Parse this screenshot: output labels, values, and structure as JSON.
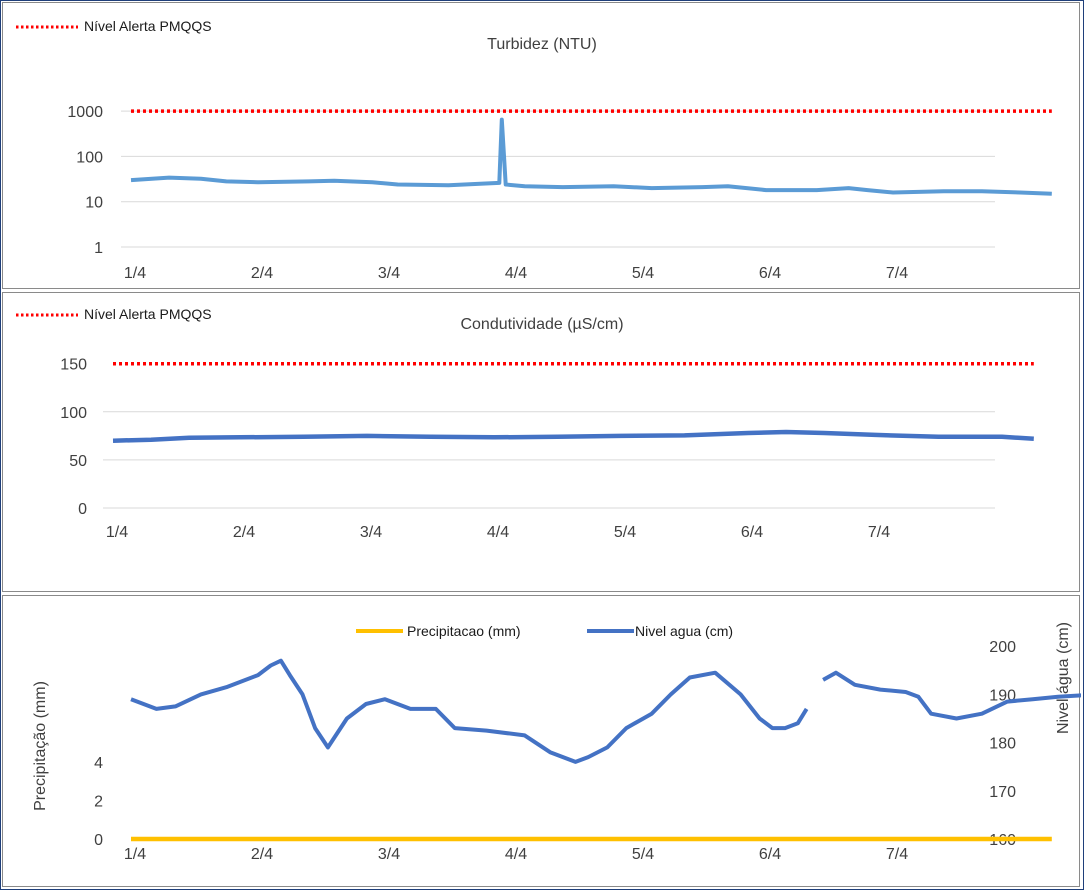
{
  "chart_data": [
    {
      "type": "line",
      "title": "Turbidez (NTU)",
      "y_scale": "log",
      "ylim": [
        1,
        1000
      ],
      "y_ticks": [
        "1",
        "10",
        "100",
        "1000"
      ],
      "x_ticks": [
        "1/4",
        "2/4",
        "3/4",
        "4/4",
        "5/4",
        "6/4",
        "7/4"
      ],
      "grid": true,
      "legend_position": "top-left",
      "alert_level": 1000,
      "colors": {
        "series": "#5b9bd5",
        "alert": "#ff0000"
      },
      "series": [
        {
          "name": "Nível Alerta PMQQS",
          "style": "dotted",
          "points": [
            [
              0,
              1000
            ],
            [
              7.25,
              1000
            ]
          ]
        },
        {
          "style": "solid",
          "points": [
            [
              0,
              30
            ],
            [
              0.3,
              34
            ],
            [
              0.55,
              32
            ],
            [
              0.75,
              28
            ],
            [
              1,
              27
            ],
            [
              1.4,
              28
            ],
            [
              1.6,
              29
            ],
            [
              1.9,
              27
            ],
            [
              2.1,
              24
            ],
            [
              2.5,
              23
            ],
            [
              2.75,
              25
            ],
            [
              2.9,
              26
            ],
            [
              2.92,
              650
            ],
            [
              2.95,
              24
            ],
            [
              3.1,
              22
            ],
            [
              3.4,
              21
            ],
            [
              3.8,
              22
            ],
            [
              4.1,
              20
            ],
            [
              4.5,
              21
            ],
            [
              4.7,
              22
            ],
            [
              5.0,
              18
            ],
            [
              5.4,
              18
            ],
            [
              5.65,
              20
            ],
            [
              5.8,
              18
            ],
            [
              6.0,
              16
            ],
            [
              6.4,
              17
            ],
            [
              6.7,
              17
            ],
            [
              7.0,
              16
            ],
            [
              7.25,
              15
            ]
          ]
        }
      ]
    },
    {
      "type": "line",
      "title": "Condutividade (µS/cm)",
      "ylim": [
        0,
        150
      ],
      "y_ticks": [
        "0",
        "50",
        "100",
        "150"
      ],
      "x_ticks": [
        "1/4",
        "2/4",
        "3/4",
        "4/4",
        "5/4",
        "6/4",
        "7/4"
      ],
      "grid": true,
      "legend_position": "top-left",
      "alert_level": 150,
      "colors": {
        "series": "#4472c4",
        "alert": "#ff0000"
      },
      "series": [
        {
          "name": "Nível Alerta PMQQS",
          "style": "dotted",
          "points": [
            [
              0,
              150
            ],
            [
              7.25,
              150
            ]
          ]
        },
        {
          "style": "solid",
          "points": [
            [
              0,
              70
            ],
            [
              0.3,
              71
            ],
            [
              0.6,
              73
            ],
            [
              1,
              73.5
            ],
            [
              1.5,
              74
            ],
            [
              2,
              75
            ],
            [
              2.5,
              74
            ],
            [
              3,
              73.5
            ],
            [
              3.5,
              74
            ],
            [
              4,
              75
            ],
            [
              4.5,
              75.5
            ],
            [
              5,
              78
            ],
            [
              5.3,
              79
            ],
            [
              5.6,
              78
            ],
            [
              6,
              76
            ],
            [
              6.5,
              74
            ],
            [
              7,
              74
            ],
            [
              7.25,
              72
            ]
          ]
        }
      ]
    },
    {
      "type": "line",
      "ylabel": "Precipitação (mm)",
      "y2label": "Nivel água (cm)",
      "ylim": [
        0,
        5
      ],
      "y_ticks": [
        "0",
        "2",
        "4"
      ],
      "y2lim": [
        160,
        200
      ],
      "y2_ticks": [
        "160",
        "170",
        "180",
        "190",
        "200"
      ],
      "x_ticks": [
        "1/4",
        "2/4",
        "3/4",
        "4/4",
        "5/4",
        "6/4",
        "7/4"
      ],
      "grid": false,
      "legend_position": "top-center",
      "colors": {
        "precip": "#ffc000",
        "level": "#4472c4"
      },
      "series": [
        {
          "name": "Precipitacao (mm)",
          "axis": "left",
          "points": [
            [
              0,
              0
            ],
            [
              7.25,
              0
            ]
          ]
        },
        {
          "name": "Nivel agua (cm)",
          "axis": "right",
          "points": [
            [
              0,
              189
            ],
            [
              0.2,
              187
            ],
            [
              0.35,
              187.5
            ],
            [
              0.55,
              190
            ],
            [
              0.75,
              191.5
            ],
            [
              1.0,
              194
            ],
            [
              1.1,
              196
            ],
            [
              1.18,
              197
            ],
            [
              1.25,
              194
            ],
            [
              1.35,
              190
            ],
            [
              1.45,
              183
            ],
            [
              1.55,
              179
            ],
            [
              1.7,
              185
            ],
            [
              1.85,
              188
            ],
            [
              2.0,
              189
            ],
            [
              2.2,
              187
            ],
            [
              2.4,
              187
            ],
            [
              2.55,
              183
            ],
            [
              2.8,
              182.5
            ],
            [
              3.1,
              181.5
            ],
            [
              3.3,
              178
            ],
            [
              3.5,
              176
            ],
            [
              3.6,
              177
            ],
            [
              3.75,
              179
            ],
            [
              3.9,
              183
            ],
            [
              4.1,
              186
            ],
            [
              4.25,
              190
            ],
            [
              4.4,
              193.5
            ],
            [
              4.6,
              194.5
            ],
            [
              4.8,
              190
            ],
            [
              4.95,
              185
            ],
            [
              5.05,
              183
            ],
            [
              5.15,
              183
            ],
            [
              5.25,
              184
            ],
            [
              5.32,
              187
            ],
            [
              5.45,
              193
            ],
            [
              5.55,
              194.5
            ],
            [
              5.7,
              192
            ],
            [
              5.9,
              191
            ],
            [
              6.1,
              190.5
            ],
            [
              6.2,
              189.5
            ],
            [
              6.3,
              186
            ],
            [
              6.5,
              185
            ],
            [
              6.7,
              186
            ],
            [
              6.9,
              188.5
            ],
            [
              7.1,
              189
            ],
            [
              7.3,
              189.5
            ],
            [
              7.6,
              190
            ],
            [
              7.85,
              190
            ],
            [
              7.9,
              190
            ]
          ]
        }
      ]
    }
  ]
}
